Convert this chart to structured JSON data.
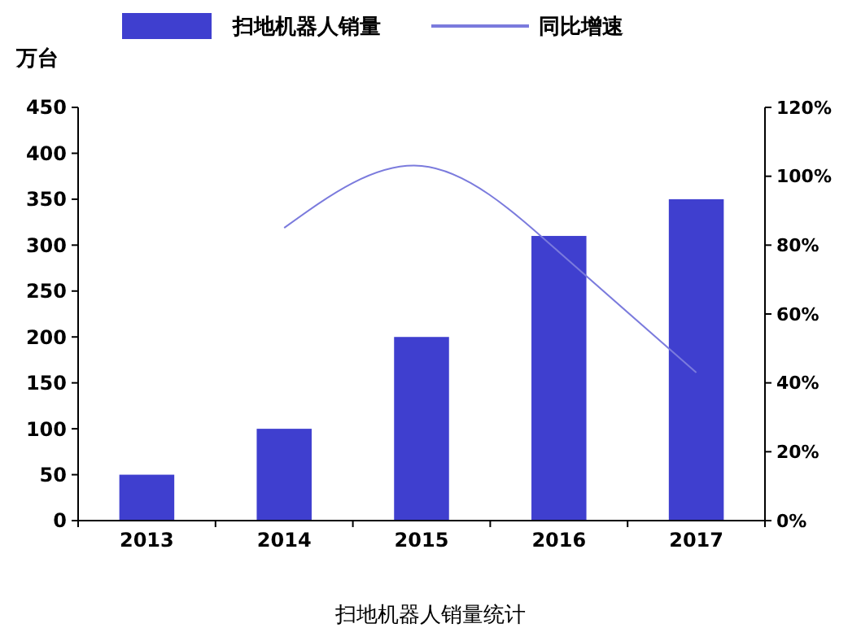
{
  "chart_data": {
    "type": "bar",
    "title": "扫地机器人销量统计",
    "ylabel": "万台",
    "categories": [
      "2013",
      "2014",
      "2015",
      "2016",
      "2017"
    ],
    "series": [
      {
        "name": "扫地机器人销量",
        "color": "#3f3fcf",
        "values": [
          50,
          100,
          200,
          310,
          350
        ]
      },
      {
        "name": "同比增速",
        "type": "line",
        "axis": "y2",
        "color": "#7b7bdd",
        "values": [
          null,
          85,
          103,
          78,
          43
        ]
      }
    ],
    "ylim": [
      0,
      450
    ],
    "yticks": [
      0,
      50,
      100,
      150,
      200,
      250,
      300,
      350,
      400,
      450
    ],
    "y2lim": [
      0,
      120
    ],
    "y2ticks": [
      {
        "value": 0,
        "label": "0%"
      },
      {
        "value": 20,
        "label": "20%"
      },
      {
        "value": 40,
        "label": "40%"
      },
      {
        "value": 60,
        "label": "60%"
      },
      {
        "value": 80,
        "label": "80%"
      },
      {
        "value": 100,
        "label": "100%"
      },
      {
        "value": 120,
        "label": "120%"
      }
    ],
    "legend": "top",
    "grid": false,
    "marker": "none"
  }
}
